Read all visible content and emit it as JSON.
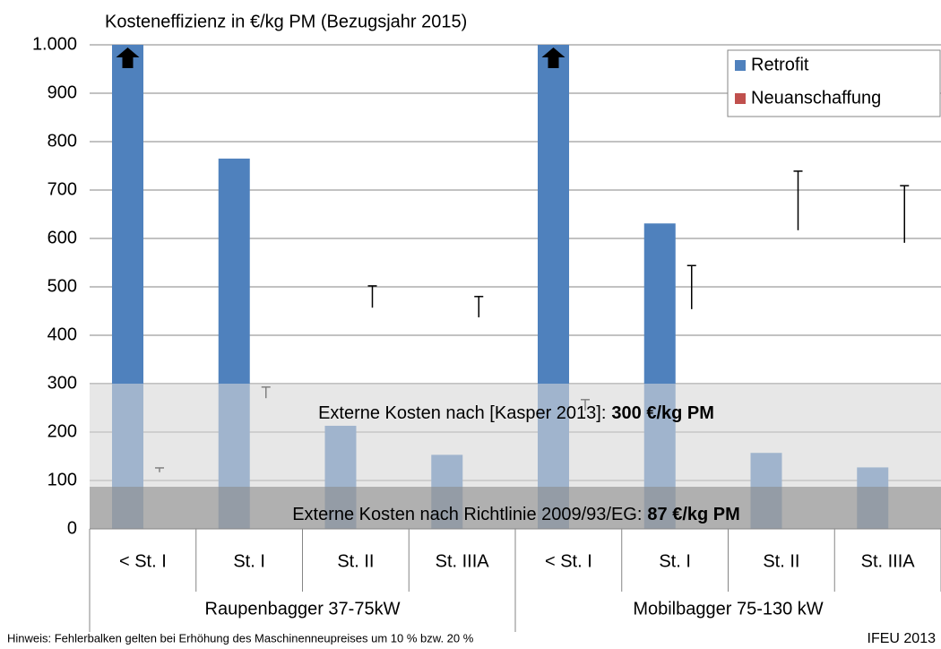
{
  "chart_data": {
    "type": "bar",
    "title": "Kosteneffizienz in €/kg PM (Bezugsjahr 2015)",
    "categories": [
      "< St. I",
      "St. I",
      "St. II",
      "St. IIIA",
      "< St. I",
      "St. I",
      "St. II",
      "St. IIIA"
    ],
    "groups": [
      {
        "label": "Raupenbagger 37-75kW",
        "span": [
          0,
          3
        ]
      },
      {
        "label": "Mobilbagger 75-130 kW",
        "span": [
          4,
          7
        ]
      }
    ],
    "series": [
      {
        "name": "Retrofit",
        "color": "#4f81bd",
        "values": [
          1000,
          765,
          213,
          153,
          1000,
          631,
          157,
          127
        ]
      },
      {
        "name": "Neuanschaffung",
        "color": "#c0504d",
        "values": [
          117,
          270,
          457,
          437,
          244,
          454,
          617,
          591
        ],
        "errors": [
          9,
          23,
          45,
          43,
          23,
          90,
          122,
          118
        ]
      }
    ],
    "ylim": [
      0,
      1000
    ],
    "yticks": [
      0,
      100,
      200,
      300,
      400,
      500,
      600,
      700,
      800,
      900,
      {
        "value": 1000,
        "label": "1.000"
      }
    ],
    "grid": true,
    "legend": "top-right",
    "bands": [
      {
        "value": 300,
        "label": "Externe Kosten nach [Kasper 2013]:",
        "value_label": "300 €/kg PM",
        "color": "rgba(215,215,215,0.6)"
      },
      {
        "value": 87,
        "label": "Externe Kosten nach Richtlinie 2009/93/EG:",
        "value_label": "87 €/kg PM",
        "color": "rgba(140,140,140,0.6)"
      }
    ],
    "note": "Hinweis: Fehlerbalken gelten bei Erhöhung des Maschinenneupreises um  10 % bzw. 20 %",
    "source": "IFEU 2013"
  }
}
